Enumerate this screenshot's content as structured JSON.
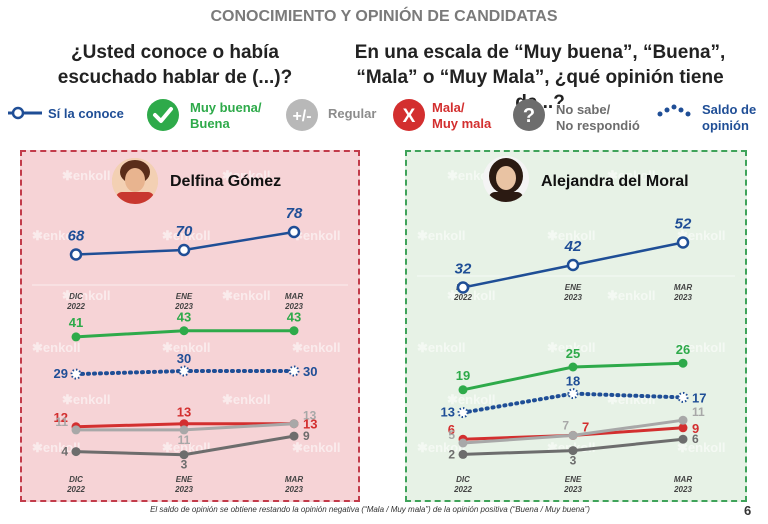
{
  "header": {
    "title": "CONOCIMIENTO Y OPINIÓN DE CANDIDATAS",
    "question_left": [
      "¿Usted conoce o había",
      "escuchado hablar de (...)?"
    ],
    "question_right": [
      "En una escala de “Muy buena”, “Buena”,",
      "“Mala” o “Muy Mala”, ¿qué opinión tiene de...?"
    ]
  },
  "legend": [
    {
      "icon": "open-circle-line-icon",
      "label": [
        "Sí la conoce"
      ],
      "color": "#1f4e96"
    },
    {
      "icon": "check-circle-icon",
      "label": [
        "Muy buena/",
        "Buena"
      ],
      "color": "#2eaa4a"
    },
    {
      "icon": "plus-minus-icon",
      "label": [
        "Regular"
      ],
      "color": "#8c8c8c"
    },
    {
      "icon": "x-circle-icon",
      "label": [
        "Mala/",
        "Muy mala"
      ],
      "color": "#d32f2f"
    },
    {
      "icon": "question-circle-icon",
      "label": [
        "No sabe/",
        "No respondió"
      ],
      "color": "#6d6d6d"
    },
    {
      "icon": "dotted-line-icon",
      "label": [
        "Saldo de",
        "opinión"
      ],
      "color": "#1f4e96"
    }
  ],
  "watermark": "enkoll",
  "colors": {
    "know": "#1f4e96",
    "good": "#2eaa4a",
    "regular": "#a8a8a8",
    "bad": "#d32f2f",
    "ns": "#6d6d6d",
    "saldo": "#1f4e96"
  },
  "chart_data": [
    {
      "type": "line",
      "candidate": "Delfina Gómez",
      "x": [
        "DIC 2022",
        "ENE 2023",
        "MAR 2023"
      ],
      "x_labels": [
        [
          "DIC",
          "2022"
        ],
        [
          "ENE",
          "2023"
        ],
        [
          "MAR",
          "2023"
        ]
      ],
      "series": [
        {
          "name": "Sí la conoce",
          "key": "know",
          "values": [
            68,
            70,
            78
          ]
        },
        {
          "name": "Muy buena/Buena",
          "key": "good",
          "values": [
            41,
            43,
            43
          ]
        },
        {
          "name": "Saldo de opinión",
          "key": "saldo",
          "values": [
            29,
            30,
            30
          ]
        },
        {
          "name": "Mala/Muy mala",
          "key": "bad",
          "values": [
            12,
            13,
            13
          ]
        },
        {
          "name": "Regular",
          "key": "regular",
          "values": [
            11,
            11,
            13
          ]
        },
        {
          "name": "No sabe/No respondió",
          "key": "ns",
          "values": [
            4,
            3,
            9
          ]
        }
      ]
    },
    {
      "type": "line",
      "candidate": "Alejandra del Moral",
      "x": [
        "DIC 2022",
        "ENE 2023",
        "MAR 2023"
      ],
      "x_labels": [
        [
          "DIC",
          "2022"
        ],
        [
          "ENE",
          "2023"
        ],
        [
          "MAR",
          "2023"
        ]
      ],
      "series": [
        {
          "name": "Sí la conoce",
          "key": "know",
          "values": [
            32,
            42,
            52
          ]
        },
        {
          "name": "Muy buena/Buena",
          "key": "good",
          "values": [
            19,
            25,
            26
          ]
        },
        {
          "name": "Saldo de opinión",
          "key": "saldo",
          "values": [
            13,
            18,
            17
          ]
        },
        {
          "name": "Mala/Muy mala",
          "key": "bad",
          "values": [
            6,
            7,
            9
          ]
        },
        {
          "name": "Regular",
          "key": "regular",
          "values": [
            5,
            7,
            11
          ]
        },
        {
          "name": "No sabe/No respondió",
          "key": "ns",
          "values": [
            2,
            3,
            6
          ]
        }
      ]
    }
  ],
  "footnote": "El saldo de opinión se obtiene restando la opinión negativa (“Mala / Muy mala”) de la opinión positiva (“Buena / Muy buena”)",
  "page_number": "6"
}
